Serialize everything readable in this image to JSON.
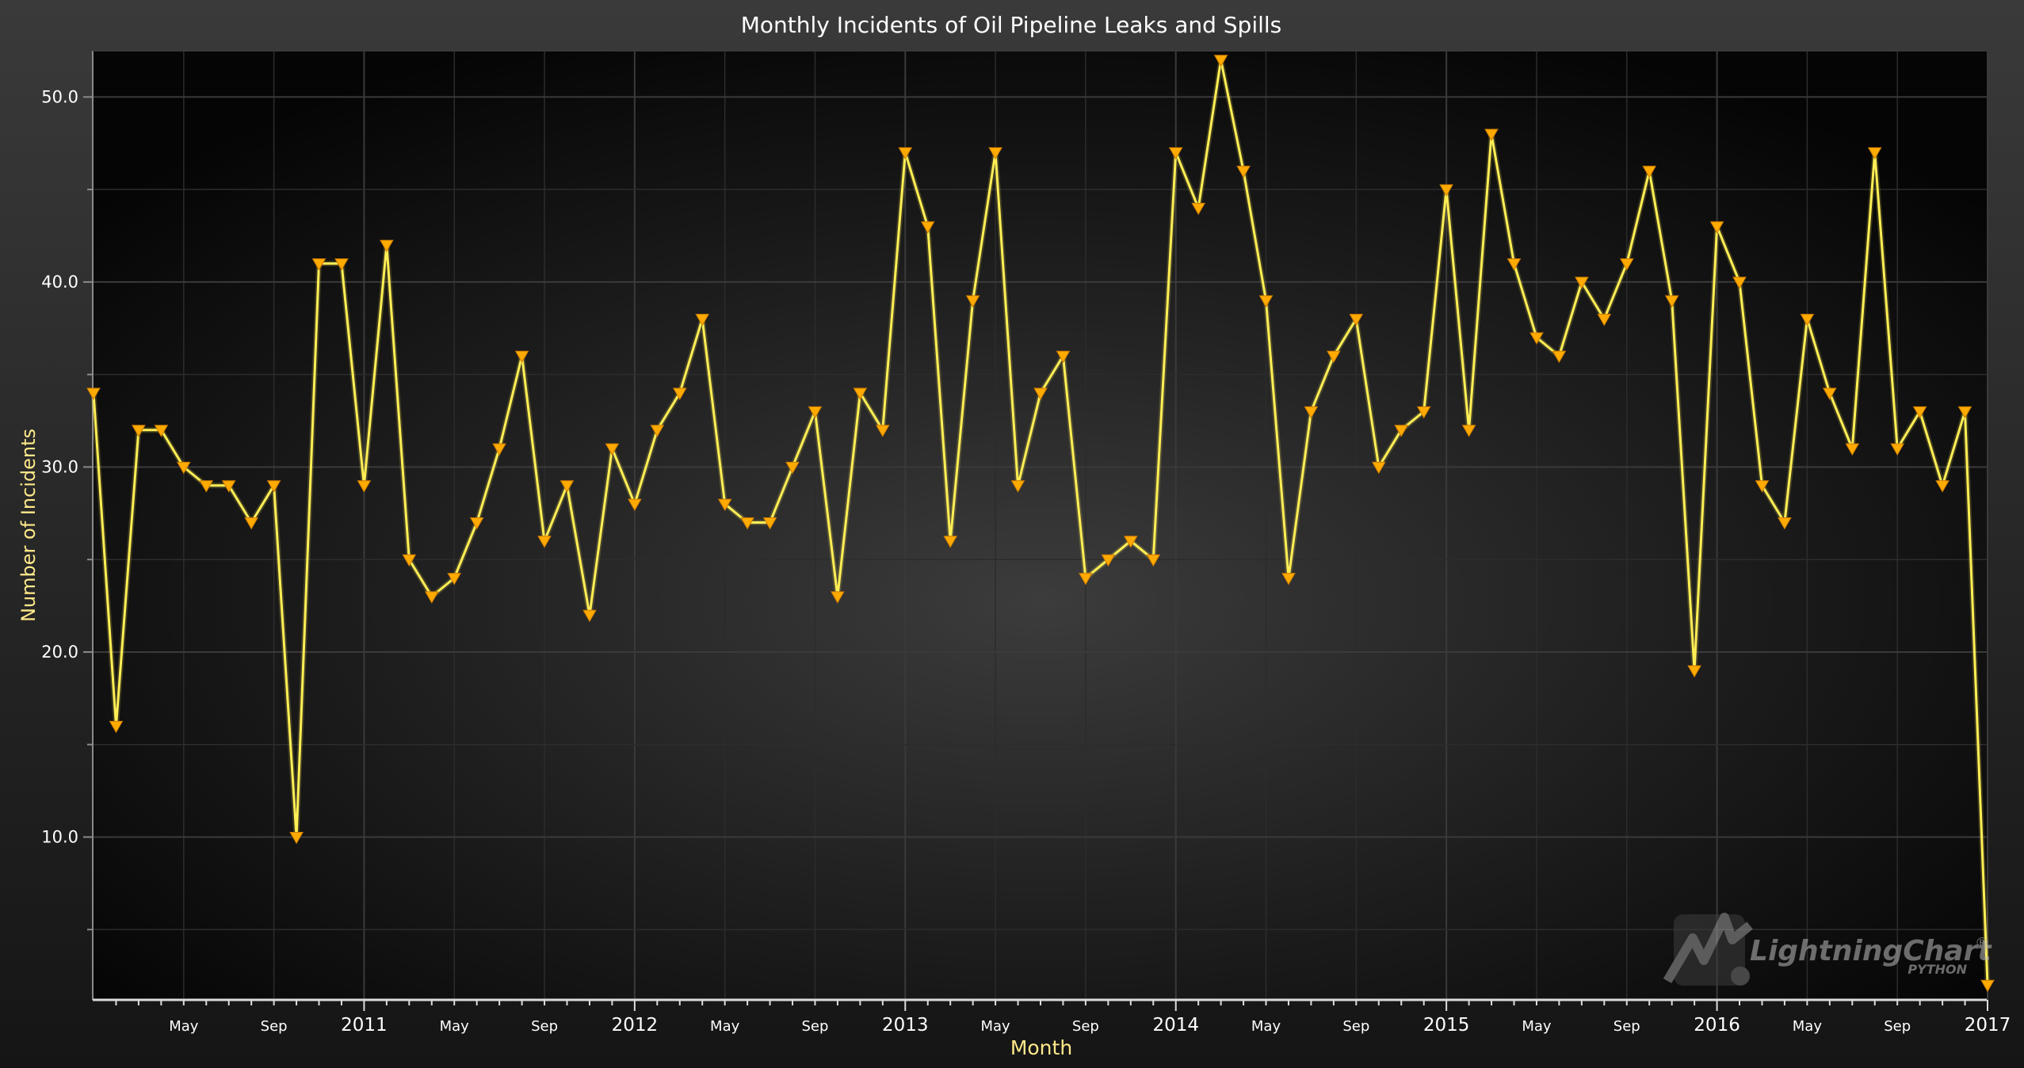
{
  "chart_data": {
    "type": "line",
    "title": "Monthly Incidents of Oil Pipeline Leaks and Spills",
    "xlabel": "Month",
    "ylabel": "Number of Incidents",
    "x_axis": {
      "type": "time",
      "start": "2010-01",
      "end": "2017-01",
      "year_ticks": [
        "2011",
        "2012",
        "2013",
        "2014",
        "2015",
        "2016",
        "2017"
      ],
      "month_ticks": [
        "May",
        "Sep"
      ]
    },
    "y_axis": {
      "ylim": [
        1.2,
        52.5
      ],
      "ticks": [
        "10.0",
        "20.0",
        "30.0",
        "40.0",
        "50.0"
      ]
    },
    "grid": true,
    "legend": "none",
    "colors": {
      "line": "#ffee55",
      "marker": "#ffaa00",
      "title": "#ffffff",
      "axis_label": "#ffe98a",
      "tick_label": "#ffffff",
      "grid": "#2c2c2c",
      "axis": "#8a8a8a"
    },
    "marker_shape": "triangle-down",
    "series": [
      {
        "x": [
          "2010-01",
          "2010-02",
          "2010-03",
          "2010-04",
          "2010-05",
          "2010-06",
          "2010-07",
          "2010-08",
          "2010-09",
          "2010-10",
          "2010-11",
          "2010-12",
          "2011-01",
          "2011-02",
          "2011-03",
          "2011-04",
          "2011-05",
          "2011-06",
          "2011-07",
          "2011-08",
          "2011-09",
          "2011-10",
          "2011-11",
          "2011-12",
          "2012-01",
          "2012-02",
          "2012-03",
          "2012-04",
          "2012-05",
          "2012-06",
          "2012-07",
          "2012-08",
          "2012-09",
          "2012-10",
          "2012-11",
          "2012-12",
          "2013-01",
          "2013-02",
          "2013-03",
          "2013-04",
          "2013-05",
          "2013-06",
          "2013-07",
          "2013-08",
          "2013-09",
          "2013-10",
          "2013-11",
          "2013-12",
          "2014-01",
          "2014-02",
          "2014-03",
          "2014-04",
          "2014-05",
          "2014-06",
          "2014-07",
          "2014-08",
          "2014-09",
          "2014-10",
          "2014-11",
          "2014-12",
          "2015-01",
          "2015-02",
          "2015-03",
          "2015-04",
          "2015-05",
          "2015-06",
          "2015-07",
          "2015-08",
          "2015-09",
          "2015-10",
          "2015-11",
          "2015-12",
          "2016-01",
          "2016-02",
          "2016-03",
          "2016-04",
          "2016-05",
          "2016-06",
          "2016-07",
          "2016-08",
          "2016-09",
          "2016-10",
          "2016-11",
          "2016-12",
          "2017-01"
        ],
        "values": [
          34,
          16,
          32,
          32,
          30,
          29,
          29,
          27,
          29,
          10,
          41,
          41,
          29,
          42,
          25,
          23,
          24,
          27,
          31,
          36,
          26,
          29,
          22,
          31,
          28,
          32,
          34,
          38,
          28,
          27,
          27,
          30,
          33,
          23,
          34,
          32,
          47,
          43,
          26,
          39,
          47,
          29,
          34,
          36,
          24,
          25,
          26,
          25,
          47,
          44,
          52,
          46,
          39,
          24,
          33,
          36,
          38,
          30,
          32,
          33,
          45,
          32,
          48,
          41,
          37,
          36,
          40,
          38,
          41,
          46,
          39,
          19,
          43,
          40,
          29,
          27,
          38,
          34,
          31,
          47,
          31,
          33,
          29,
          33,
          2
        ]
      }
    ]
  },
  "branding": {
    "logo_text": "LightningChart",
    "logo_mark": "®",
    "logo_subtext": "PYTHON"
  }
}
